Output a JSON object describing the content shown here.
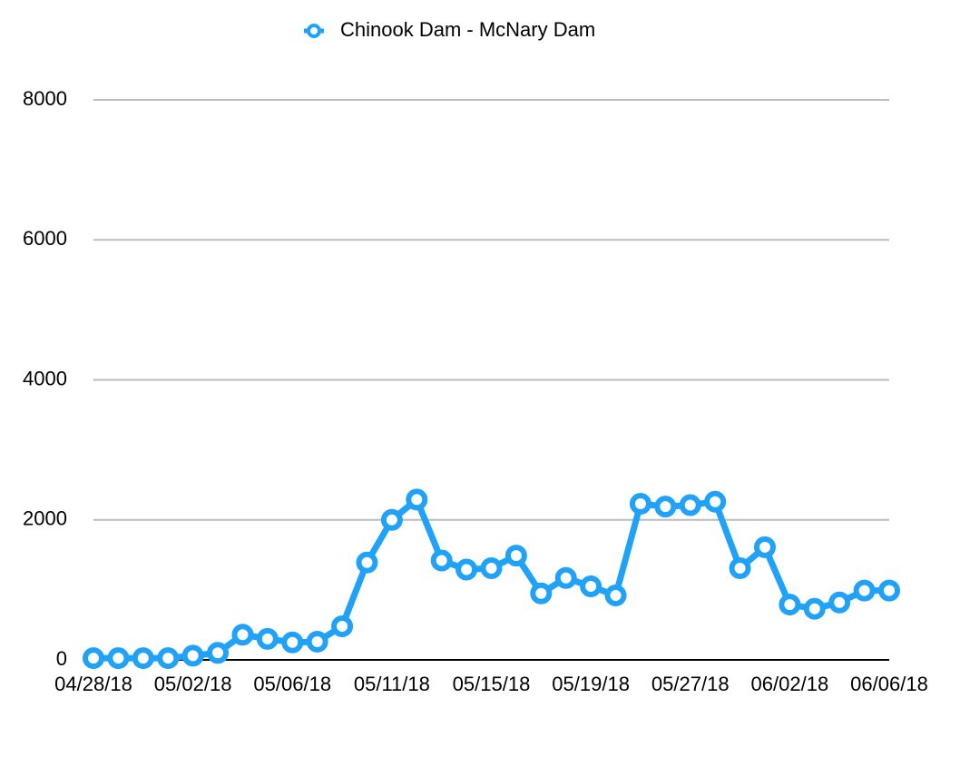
{
  "chart_data": {
    "type": "line",
    "categories": [
      "04/28/18",
      null,
      null,
      null,
      "05/02/18",
      null,
      null,
      null,
      "05/06/18",
      null,
      null,
      null,
      "05/11/18",
      null,
      null,
      null,
      "05/15/18",
      null,
      null,
      null,
      "05/19/18",
      null,
      null,
      null,
      "05/27/18",
      null,
      null,
      null,
      "06/02/18",
      null,
      null,
      null,
      "06/06/18"
    ],
    "series": [
      {
        "name": "Chinook Dam - McNary Dam",
        "color": "#1fa2f8",
        "values": [
          25,
          25,
          25,
          25,
          60,
          100,
          360,
          300,
          250,
          260,
          480,
          1390,
          2000,
          2290,
          1420,
          1290,
          1310,
          1490,
          950,
          1170,
          1050,
          920,
          2230,
          2190,
          2210,
          2260,
          1310,
          1610,
          790,
          730,
          820,
          990,
          990
        ]
      }
    ],
    "ylim": [
      0,
      8000
    ],
    "yticks": [
      0,
      2000,
      4000,
      6000,
      8000
    ],
    "grid": true,
    "legend": "top"
  }
}
